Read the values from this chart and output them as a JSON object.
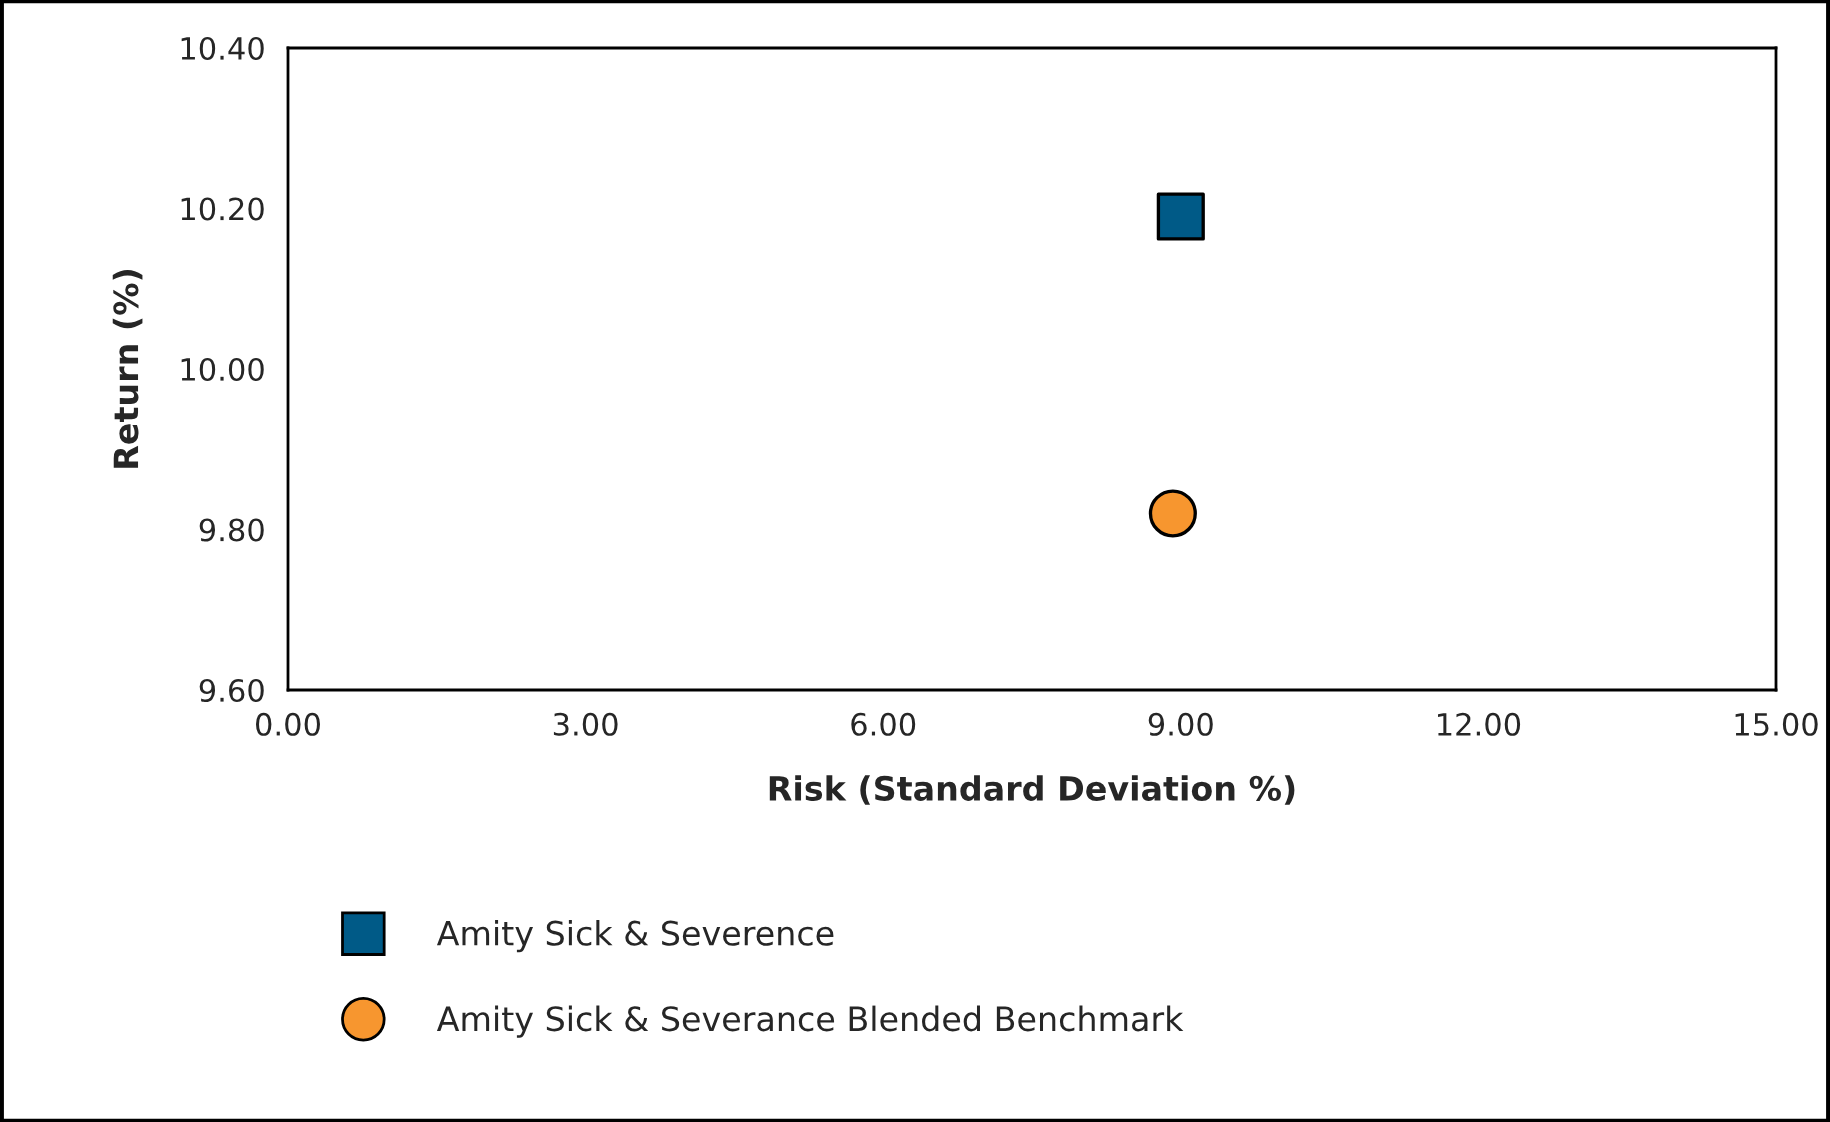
{
  "chart_data": {
    "type": "scatter",
    "xlabel": "Risk (Standard Deviation %)",
    "ylabel": "Return (%)",
    "series": [
      {
        "name": "Amity Sick & Severence",
        "color": "#005a87",
        "marker": "square",
        "x": [
          9.0
        ],
        "values": [
          10.19
        ]
      },
      {
        "name": "Amity Sick & Severance Blended Benchmark",
        "color": "#f7962f",
        "marker": "circle",
        "x": [
          8.92
        ],
        "values": [
          9.82
        ]
      }
    ],
    "xlim": [
      0,
      15
    ],
    "xticks": [
      {
        "value": 0,
        "label": "0.00"
      },
      {
        "value": 3,
        "label": "3.00"
      },
      {
        "value": 6,
        "label": "6.00"
      },
      {
        "value": 9,
        "label": "9.00"
      },
      {
        "value": 12,
        "label": "12.00"
      },
      {
        "value": 15,
        "label": "15.00"
      }
    ],
    "ylim": [
      9.6,
      10.4
    ],
    "yticks": [
      {
        "value": 9.6,
        "label": "9.60"
      },
      {
        "value": 9.8,
        "label": "9.80"
      },
      {
        "value": 10.0,
        "label": "10.00"
      },
      {
        "value": 10.2,
        "label": "10.20"
      },
      {
        "value": 10.4,
        "label": "10.40"
      }
    ],
    "grid": false,
    "legend": "bottom"
  }
}
